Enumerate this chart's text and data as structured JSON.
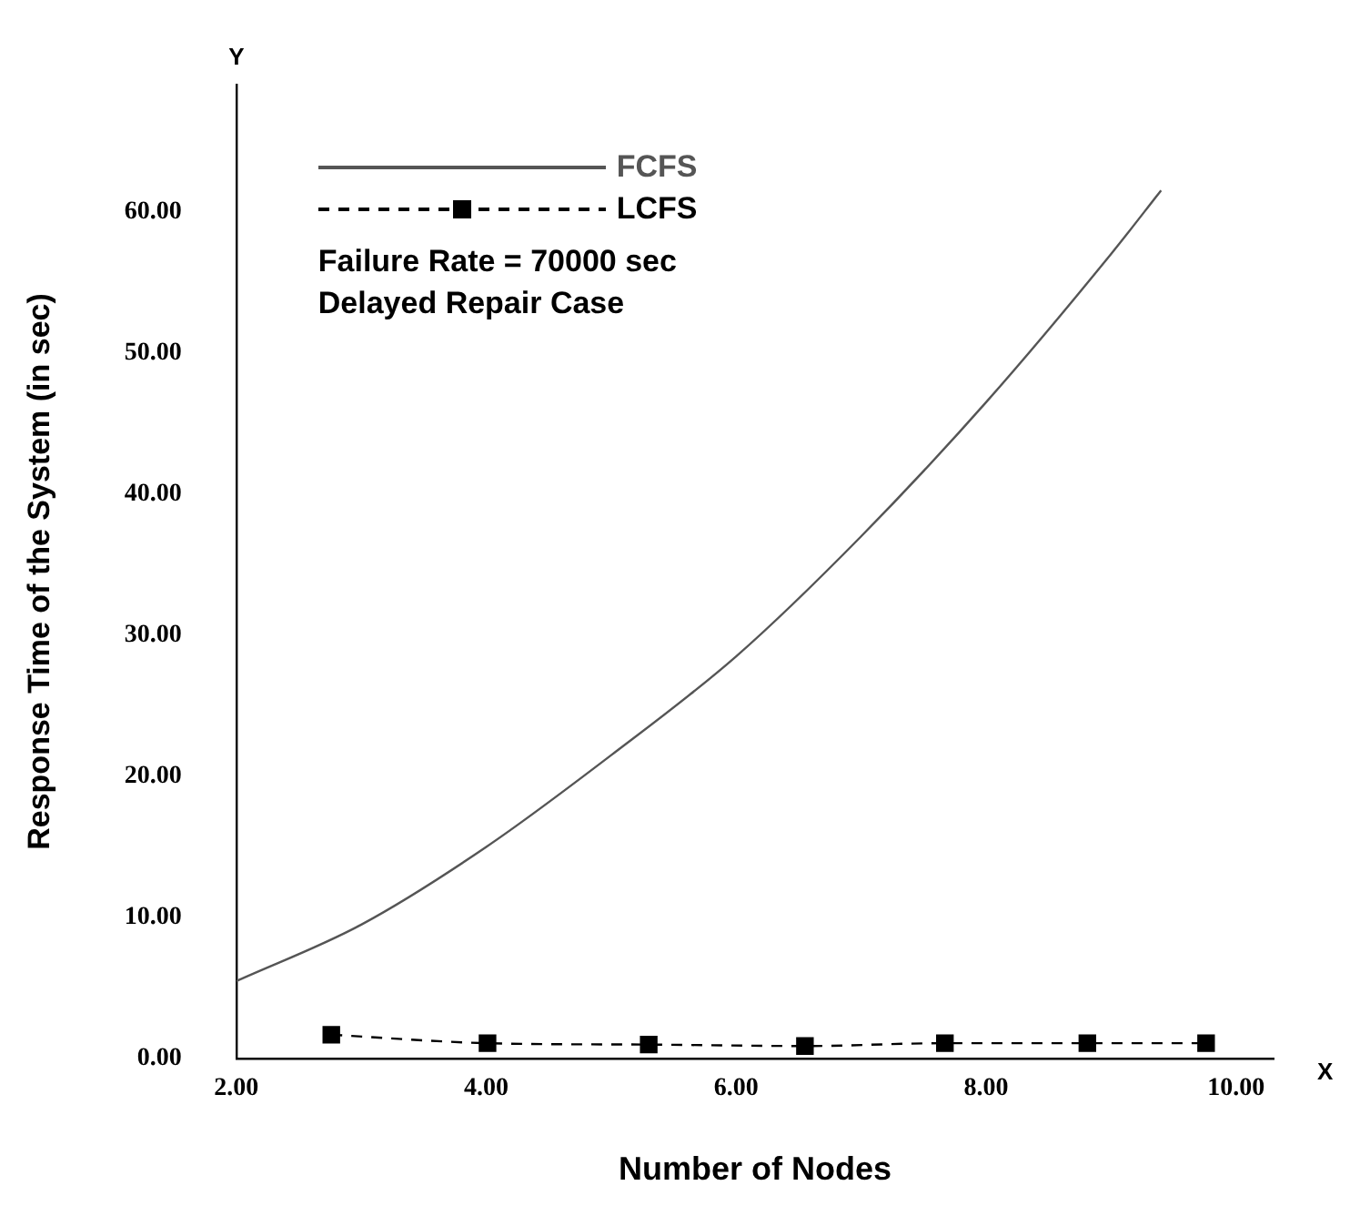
{
  "chart_data": {
    "type": "line",
    "xlabel": "Number of Nodes",
    "ylabel": "Response Time of the System (in sec)",
    "annotations": [
      "Y",
      "X",
      "Failure Rate = 70000 sec",
      "Delayed Repair Case"
    ],
    "xlim": [
      2,
      10.3
    ],
    "xticks": [
      {
        "value": 2,
        "label": "2.00"
      },
      {
        "value": 4,
        "label": "4.00"
      },
      {
        "value": 6,
        "label": "6.00"
      },
      {
        "value": 8,
        "label": "8.00"
      },
      {
        "value": 10,
        "label": "10.00"
      }
    ],
    "ylim": [
      0,
      69
    ],
    "yticks": [
      {
        "value": 0,
        "label": "0.00"
      },
      {
        "value": 10,
        "label": "10.00"
      },
      {
        "value": 20,
        "label": "20.00"
      },
      {
        "value": 30,
        "label": "30.00"
      },
      {
        "value": 40,
        "label": "40.00"
      },
      {
        "value": 50,
        "label": "50.00"
      },
      {
        "value": 60,
        "label": "60.00"
      }
    ],
    "legend": "top left",
    "grid": false,
    "series": [
      {
        "name": "FCFS",
        "color": "#555555",
        "line_style": "solid",
        "marker": "none",
        "x": [
          2,
          3,
          4,
          5,
          6,
          7,
          8,
          9,
          9.4
        ],
        "values": [
          5.5,
          9.5,
          15,
          21.5,
          28.5,
          37,
          46.5,
          57,
          61.5
        ]
      },
      {
        "name": "LCFS",
        "color": "#000000",
        "line_style": "dashed",
        "marker": "square",
        "x": [
          2.76,
          4.01,
          5.3,
          6.55,
          7.67,
          8.81,
          9.76
        ],
        "values": [
          1.7,
          1.1,
          1.0,
          0.9,
          1.1,
          1.1,
          1.1
        ]
      }
    ]
  }
}
